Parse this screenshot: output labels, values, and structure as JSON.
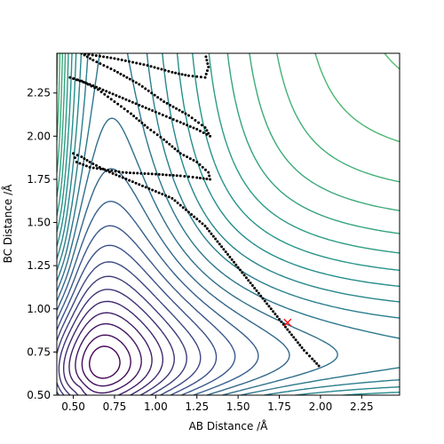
{
  "chart_data": {
    "type": "contour",
    "xlabel": "AB Distance /Å",
    "ylabel": "BC Distance /Å",
    "xlim": [
      0.4,
      2.48
    ],
    "ylim": [
      0.5,
      2.48
    ],
    "x_ticks": [
      "0.50",
      "0.75",
      "1.00",
      "1.25",
      "1.50",
      "1.75",
      "2.00",
      "2.25"
    ],
    "y_ticks": [
      "0.50",
      "0.75",
      "1.00",
      "1.25",
      "1.50",
      "1.75",
      "2.00",
      "2.25"
    ],
    "grid": false,
    "contour_colormap": [
      "#440154",
      "#3b528b",
      "#21918c",
      "#5ec962",
      "#fde725"
    ],
    "marker": {
      "symbol": "x",
      "color": "#ff0000",
      "x": 1.8,
      "y": 0.92
    },
    "trajectory": {
      "color": "#000000",
      "style": "dotted",
      "points": [
        [
          1.99,
          0.67
        ],
        [
          1.95,
          0.71
        ],
        [
          1.9,
          0.76
        ],
        [
          1.85,
          0.82
        ],
        [
          1.8,
          0.88
        ],
        [
          1.75,
          0.94
        ],
        [
          1.7,
          1.0
        ],
        [
          1.65,
          1.06
        ],
        [
          1.6,
          1.12
        ],
        [
          1.55,
          1.18
        ],
        [
          1.5,
          1.24
        ],
        [
          1.45,
          1.3
        ],
        [
          1.4,
          1.36
        ],
        [
          1.35,
          1.42
        ],
        [
          1.3,
          1.48
        ],
        [
          1.25,
          1.52
        ],
        [
          1.2,
          1.56
        ],
        [
          1.15,
          1.6
        ],
        [
          1.1,
          1.64
        ],
        [
          1.0,
          1.68
        ],
        [
          0.9,
          1.72
        ],
        [
          0.8,
          1.76
        ],
        [
          0.7,
          1.8
        ],
        [
          0.6,
          1.85
        ],
        [
          0.55,
          1.88
        ],
        [
          0.5,
          1.9
        ],
        [
          0.52,
          1.85
        ],
        [
          0.6,
          1.82
        ],
        [
          0.8,
          1.79
        ],
        [
          1.0,
          1.78
        ],
        [
          1.15,
          1.77
        ],
        [
          1.25,
          1.76
        ],
        [
          1.33,
          1.75
        ],
        [
          1.32,
          1.79
        ],
        [
          1.25,
          1.85
        ],
        [
          1.15,
          1.9
        ],
        [
          1.05,
          1.98
        ],
        [
          0.95,
          2.05
        ],
        [
          0.85,
          2.13
        ],
        [
          0.75,
          2.2
        ],
        [
          0.65,
          2.27
        ],
        [
          0.55,
          2.32
        ],
        [
          0.48,
          2.34
        ],
        [
          0.6,
          2.3
        ],
        [
          0.8,
          2.22
        ],
        [
          1.0,
          2.14
        ],
        [
          1.15,
          2.08
        ],
        [
          1.25,
          2.04
        ],
        [
          1.33,
          2.0
        ],
        [
          1.3,
          2.05
        ],
        [
          1.2,
          2.12
        ],
        [
          1.05,
          2.2
        ],
        [
          0.9,
          2.3
        ],
        [
          0.75,
          2.38
        ],
        [
          0.62,
          2.44
        ],
        [
          0.55,
          2.48
        ],
        [
          0.75,
          2.45
        ],
        [
          0.95,
          2.41
        ],
        [
          1.1,
          2.37
        ],
        [
          1.2,
          2.35
        ],
        [
          1.3,
          2.34
        ],
        [
          1.32,
          2.4
        ],
        [
          1.3,
          2.48
        ]
      ]
    }
  }
}
